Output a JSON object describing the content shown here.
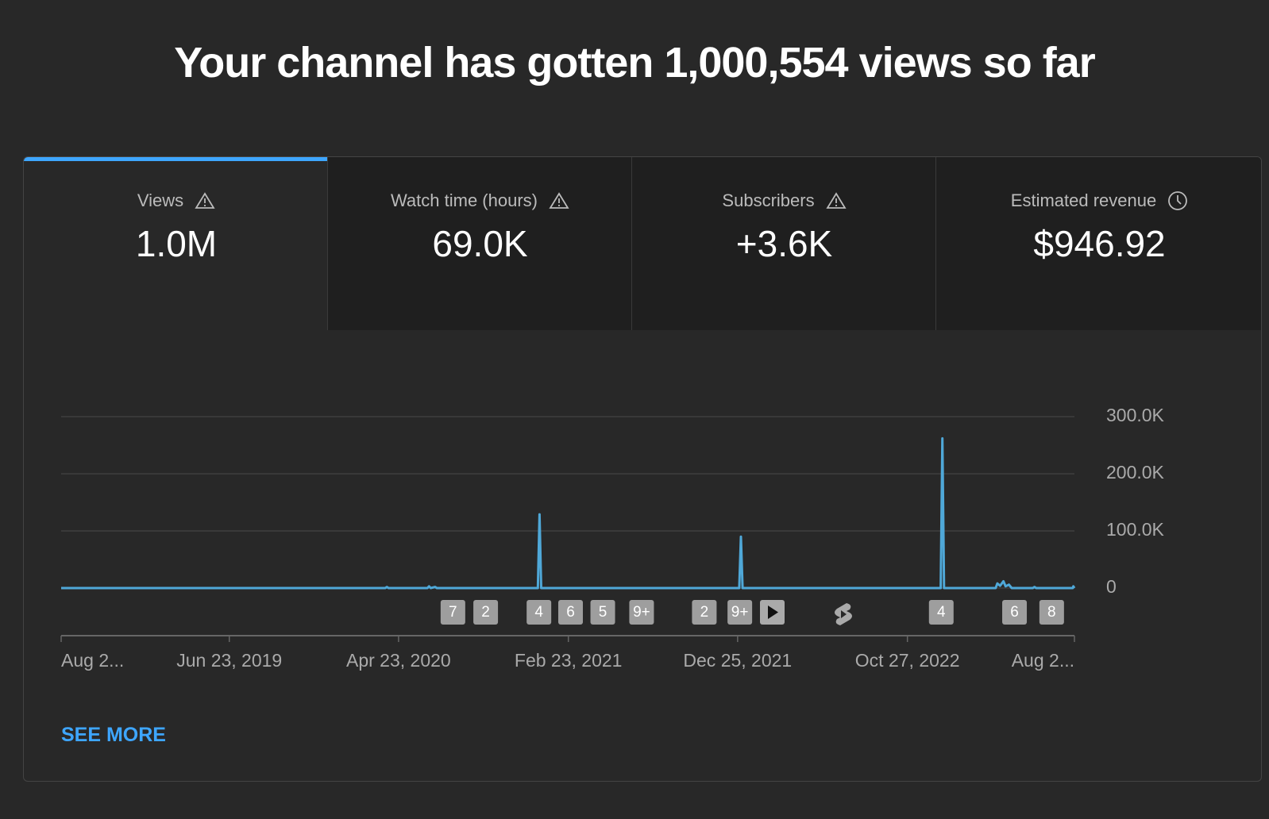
{
  "header": {
    "title": "Your channel has gotten 1,000,554 views so far"
  },
  "tabs": [
    {
      "label": "Views",
      "value": "1.0M"
    },
    {
      "label": "Watch time (hours)",
      "value": "69.0K"
    },
    {
      "label": "Subscribers",
      "value": "+3.6K"
    },
    {
      "label": "Estimated revenue",
      "value": "$946.92"
    }
  ],
  "chart_data": {
    "type": "line",
    "x": [
      "2018-08-24",
      "2020-03-30",
      "2020-04-02",
      "2020-04-05",
      "2020-06-14",
      "2020-06-17",
      "2020-06-20",
      "2020-06-28",
      "2020-07-01",
      "2020-12-30",
      "2021-01-02",
      "2021-01-05",
      "2021-12-28",
      "2021-12-31",
      "2022-01-03",
      "2022-12-26",
      "2022-12-29",
      "2023-01-01",
      "2023-04-04",
      "2023-04-07",
      "2023-04-12",
      "2023-04-18",
      "2023-04-22",
      "2023-04-28",
      "2023-05-03",
      "2023-06-10",
      "2023-06-13",
      "2023-06-16",
      "2023-08-21",
      "2023-08-22",
      "2023-08-24"
    ],
    "series": [
      {
        "name": "Views",
        "color": "#4fa8d8",
        "values": [
          0,
          0,
          2000,
          0,
          0,
          3000,
          0,
          2000,
          0,
          0,
          129000,
          0,
          0,
          90000,
          0,
          0,
          262000,
          0,
          0,
          8000,
          4000,
          12000,
          3000,
          6000,
          0,
          0,
          2000,
          0,
          0,
          3000,
          0
        ]
      }
    ],
    "xlim": [
      "2018-08-24",
      "2023-08-24"
    ],
    "xticks": [
      {
        "value": "2018-08-24",
        "label": "Aug 2..."
      },
      {
        "value": "2019-06-23",
        "label": "Jun 23, 2019"
      },
      {
        "value": "2020-04-23",
        "label": "Apr 23, 2020"
      },
      {
        "value": "2021-02-23",
        "label": "Feb 23, 2021"
      },
      {
        "value": "2021-12-25",
        "label": "Dec 25, 2021"
      },
      {
        "value": "2022-10-27",
        "label": "Oct 27, 2022"
      },
      {
        "value": "2023-08-24",
        "label": "Aug 2..."
      }
    ],
    "ylim": [
      0,
      300000
    ],
    "yticks": [
      0,
      {
        "value": 100000,
        "label": "100.0K"
      },
      {
        "value": 200000,
        "label": "200.0K"
      },
      {
        "value": 300000,
        "label": "300.0K"
      }
    ],
    "grid": true,
    "markers": [
      {
        "x": "2020-07-30",
        "label": "7"
      },
      {
        "x": "2020-09-27",
        "label": "2"
      },
      {
        "x": "2021-01-01",
        "label": "4"
      },
      {
        "x": "2021-02-27",
        "label": "6"
      },
      {
        "x": "2021-04-26",
        "label": "5"
      },
      {
        "x": "2021-07-05",
        "label": "9+"
      },
      {
        "x": "2021-10-26",
        "label": "2"
      },
      {
        "x": "2021-12-29",
        "label": "9+"
      },
      {
        "x": "2022-12-27",
        "label": "4"
      },
      {
        "x": "2023-05-08",
        "label": "6"
      },
      {
        "x": "2023-07-14",
        "label": "8"
      }
    ]
  },
  "footer": {
    "link": "SEE MORE"
  }
}
